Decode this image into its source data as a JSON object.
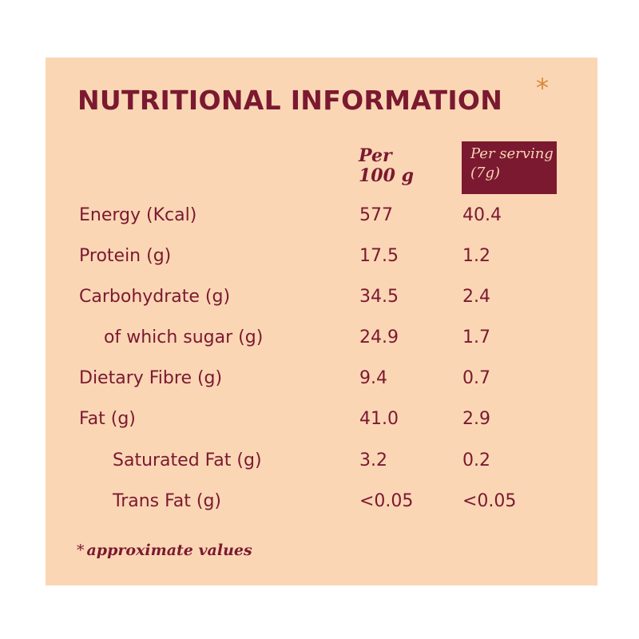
{
  "title": "NUTRITIONAL INFORMATION",
  "title_marker": "*",
  "headers": {
    "per_100_line1": "Per",
    "per_100_line2": "100 g",
    "per_serving_line1": "Per serving",
    "per_serving_line2": "(7g)"
  },
  "rows": [
    {
      "label": "Energy (Kcal)",
      "per_100": "577",
      "per_serving": "40.4"
    },
    {
      "label": "Protein (g)",
      "per_100": "17.5",
      "per_serving": "1.2"
    },
    {
      "label": "Carbohydrate (g)",
      "per_100": "34.5",
      "per_serving": "2.4"
    },
    {
      "label": "of which sugar (g)",
      "per_100": "24.9",
      "per_serving": "1.7"
    },
    {
      "label": "Dietary Fibre (g)",
      "per_100": "9.4",
      "per_serving": "0.7"
    },
    {
      "label": "Fat (g)",
      "per_100": "41.0",
      "per_serving": "2.9"
    },
    {
      "label": "Saturated Fat (g)",
      "per_100": "3.2",
      "per_serving": "0.2"
    },
    {
      "label": "Trans Fat (g)",
      "per_100": "<0.05",
      "per_serving": "<0.05"
    }
  ],
  "footnote": {
    "marker": "*",
    "text": "approximate values"
  },
  "colors": {
    "background": "#fad6b5",
    "text": "#7b1930",
    "accent_star": "#d98a3a",
    "header_box": "#7b1930"
  }
}
